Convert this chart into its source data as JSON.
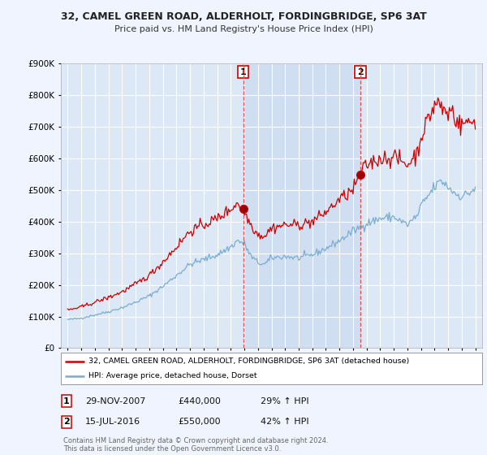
{
  "title1": "32, CAMEL GREEN ROAD, ALDERHOLT, FORDINGBRIDGE, SP6 3AT",
  "title2": "Price paid vs. HM Land Registry's House Price Index (HPI)",
  "background_color": "#f0f4ff",
  "plot_bg_color": "#dce8f5",
  "shade_color": "#c8d8f0",
  "grid_color": "#ffffff",
  "red_line_color": "#cc0000",
  "blue_line_color": "#7aadcf",
  "sale1_x": 2007.91,
  "sale1_y": 440000,
  "sale2_x": 2016.54,
  "sale2_y": 550000,
  "legend_label_red": "32, CAMEL GREEN ROAD, ALDERHOLT, FORDINGBRIDGE, SP6 3AT (detached house)",
  "legend_label_blue": "HPI: Average price, detached house, Dorset",
  "annotation1_date": "29-NOV-2007",
  "annotation1_price": "£440,000",
  "annotation1_hpi": "29% ↑ HPI",
  "annotation2_date": "15-JUL-2016",
  "annotation2_price": "£550,000",
  "annotation2_hpi": "42% ↑ HPI",
  "footer": "Contains HM Land Registry data © Crown copyright and database right 2024.\nThis data is licensed under the Open Government Licence v3.0.",
  "ylim": [
    0,
    900000
  ],
  "xlim_start": 1994.5,
  "xlim_end": 2025.5
}
